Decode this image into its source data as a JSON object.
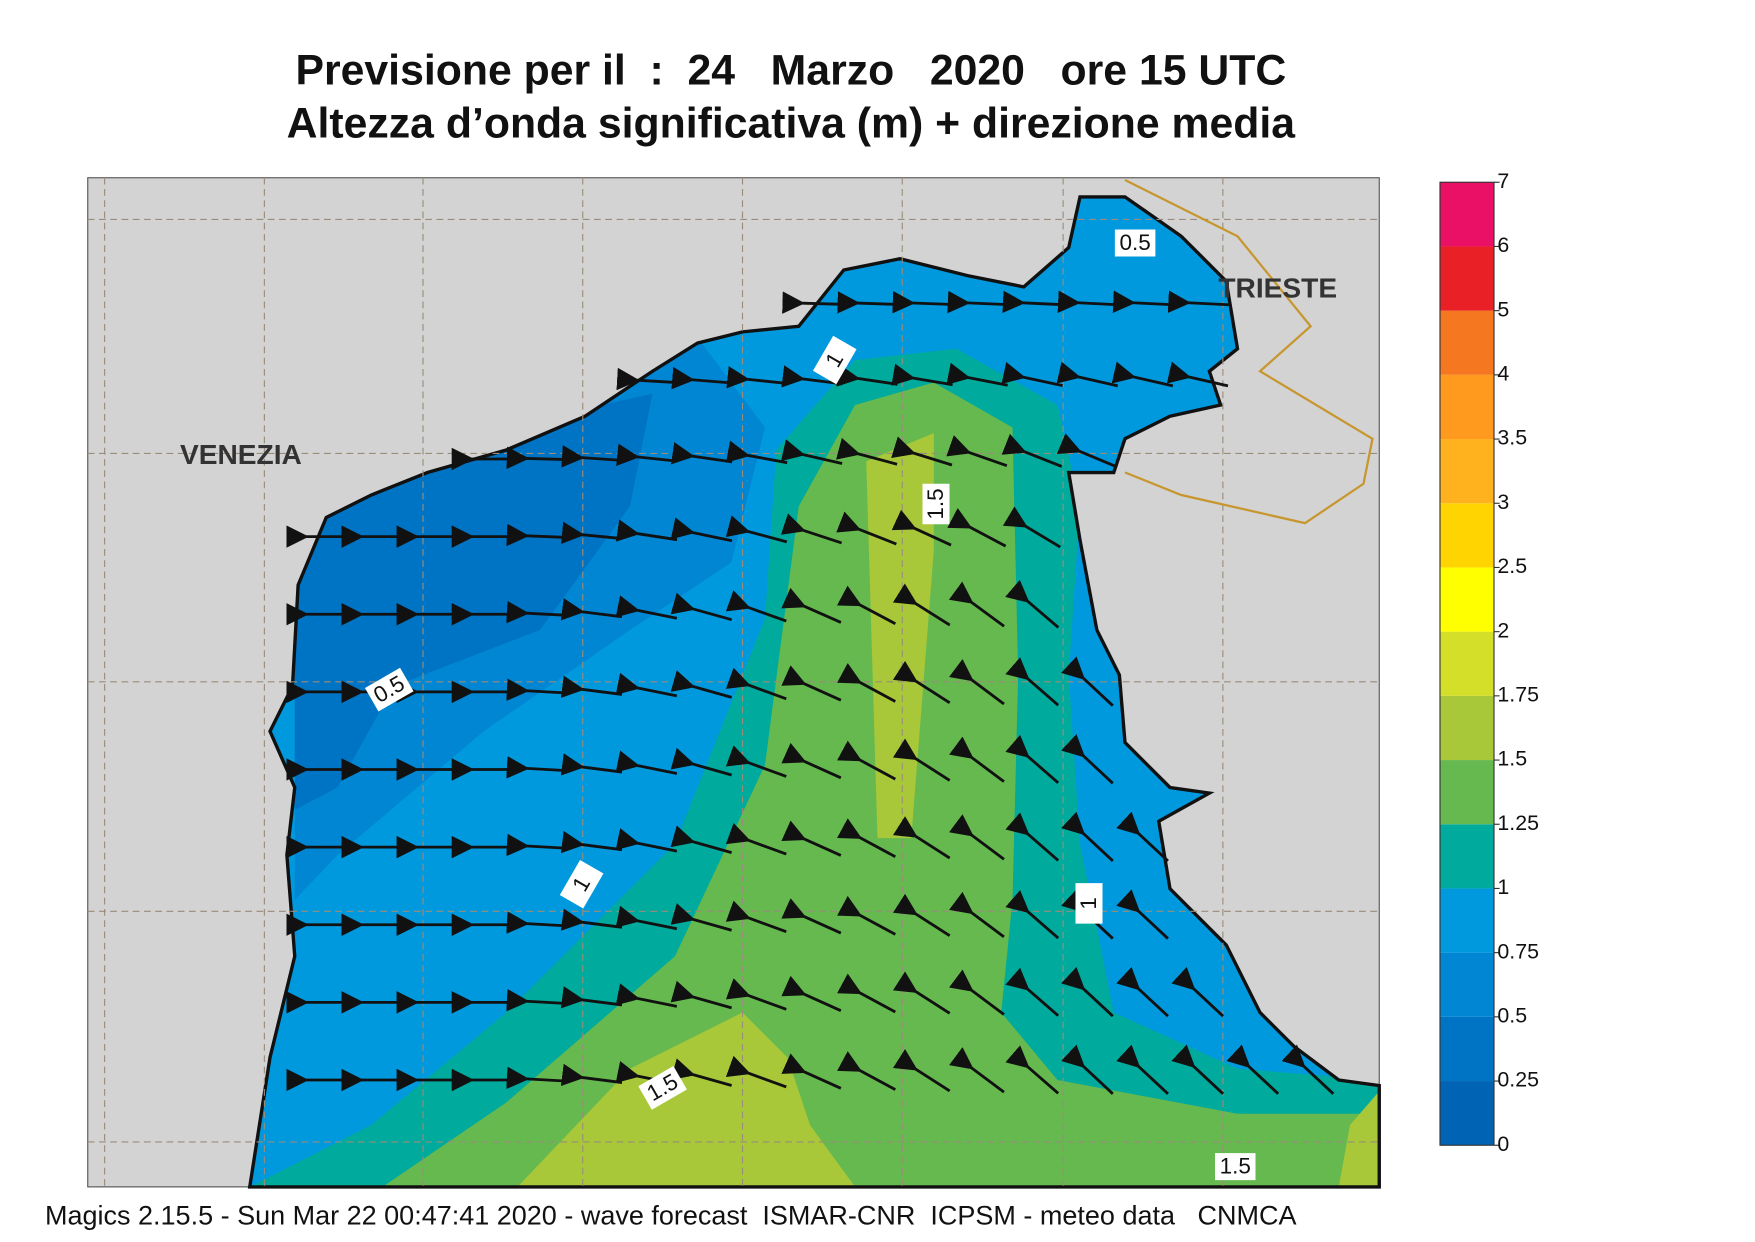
{
  "title": {
    "line1": "Previsione per il  :  24   Marzo   2020   ore 15 UTC",
    "line2": "Altezza d’onda significativa (m) + direzione media"
  },
  "places": [
    "VENEZIA",
    "TRIESTE"
  ],
  "contour_labels": [
    0.5,
    1,
    1.5,
    0.5,
    1,
    1,
    1.5,
    1.5
  ],
  "colorbar": {
    "levels": [
      0,
      0.25,
      0.5,
      0.75,
      1,
      1.25,
      1.5,
      1.75,
      2,
      2.5,
      3,
      3.5,
      4,
      5,
      6,
      7
    ],
    "colors": [
      "#0063b4",
      "#0074c4",
      "#0086d2",
      "#0099de",
      "#00aa9c",
      "#66b94f",
      "#a8c83a",
      "#d4df2a",
      "#ffff00",
      "#ffd400",
      "#ffb21e",
      "#ff9a1e",
      "#f57821",
      "#ea2027",
      "#ea1066"
    ]
  },
  "footer": "Magics 2.15.5 - Sun Mar 22 00:47:41 2020 - wave forecast  ISMAR-CNR  ICPSM - meteo data   CNMCA"
}
